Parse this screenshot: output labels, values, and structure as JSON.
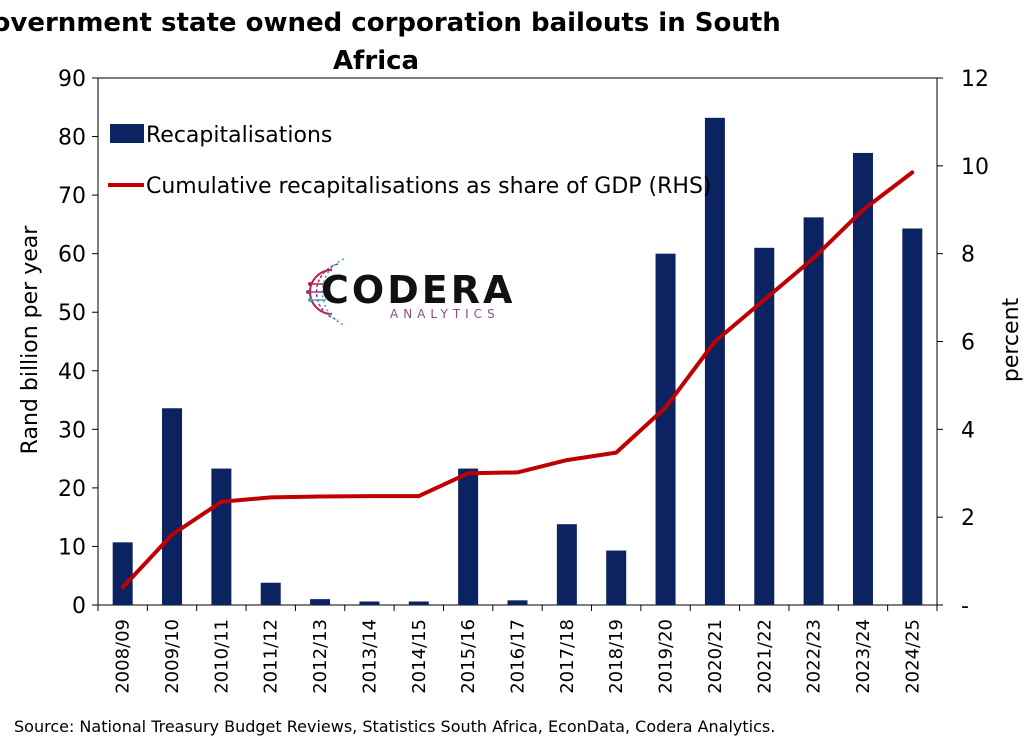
{
  "chart_data": {
    "type": "bar",
    "title_line1": "Government state owned corporation bailouts in South",
    "title_line2": "Africa",
    "ylabel": "Rand billion per year",
    "y2label": "percent",
    "ylim": [
      0,
      90
    ],
    "y2lim": [
      0,
      12
    ],
    "yticks": [
      "0",
      "10",
      "20",
      "30",
      "40",
      "50",
      "60",
      "70",
      "80",
      "90"
    ],
    "y2ticks": [
      "-",
      "2",
      "4",
      "6",
      "8",
      "10",
      "12"
    ],
    "categories": [
      "2008/09",
      "2009/10",
      "2010/11",
      "2011/12",
      "2012/13",
      "2013/14",
      "2014/15",
      "2015/16",
      "2016/17",
      "2017/18",
      "2018/19",
      "2019/20",
      "2020/21",
      "2021/22",
      "2022/23",
      "2023/24",
      "2024/25"
    ],
    "series": [
      {
        "name": "Recapitalisations",
        "type": "bar",
        "axis": "left",
        "color": "#0b2360",
        "values": [
          10.7,
          33.6,
          23.3,
          3.8,
          1.0,
          0.6,
          0.6,
          23.3,
          0.8,
          13.8,
          9.3,
          60.0,
          83.2,
          61.0,
          66.2,
          77.2,
          64.3
        ]
      },
      {
        "name": "Cumulative recapitalisations as share of GDP (RHS)",
        "type": "line",
        "axis": "right",
        "color": "#c00000",
        "values": [
          0.4,
          1.6,
          2.35,
          2.45,
          2.47,
          2.48,
          2.48,
          3.0,
          3.02,
          3.3,
          3.47,
          4.5,
          6.0,
          6.95,
          7.9,
          9.0,
          9.85
        ]
      }
    ],
    "legend_position": "top-left",
    "grid": false
  },
  "logo": {
    "name": "CODERA",
    "tagline": "ANALYTICS"
  },
  "source": "Source: National Treasury Budget Reviews, Statistics South Africa, EconData, Codera Analytics."
}
